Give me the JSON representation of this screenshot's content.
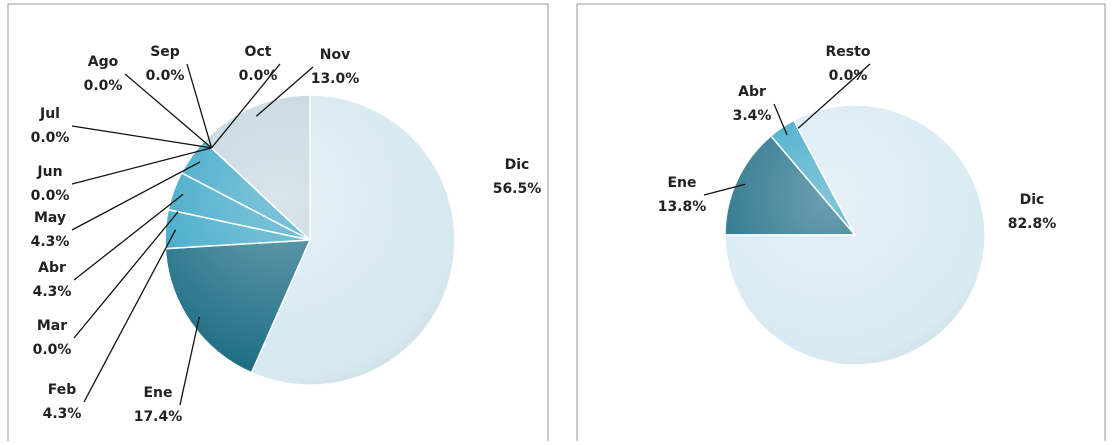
{
  "chart_data": [
    {
      "type": "pie",
      "categories": [
        "Dic",
        "Ene",
        "Feb",
        "Mar",
        "Abr",
        "May",
        "Jun",
        "Jul",
        "Ago",
        "Sep",
        "Oct",
        "Nov"
      ],
      "values": [
        56.5,
        17.4,
        4.3,
        0.0,
        4.3,
        4.3,
        0.0,
        0.0,
        0.0,
        0.0,
        0.0,
        13.0
      ],
      "value_labels": [
        "56.5%",
        "17.4%",
        "4.3%",
        "0.0%",
        "4.3%",
        "4.3%",
        "0.0%",
        "0.0%",
        "0.0%",
        "0.0%",
        "0.0%",
        "13.0%"
      ],
      "colors": [
        "#d6e8f1",
        "#1f6e86",
        "#3aa6c6",
        "#2f8fae",
        "#3aa6c6",
        "#3aa6c6",
        "#2f8fae",
        "#2f8fae",
        "#2f8fae",
        "#2f8fae",
        "#2f8fae",
        "#c3d6df"
      ]
    },
    {
      "type": "pie",
      "categories": [
        "Ene",
        "Abr",
        "Resto",
        "Dic"
      ],
      "values": [
        13.8,
        3.4,
        0.0,
        82.8
      ],
      "value_labels": [
        "13.8%",
        "3.4%",
        "0.0%",
        "82.8%"
      ],
      "colors": [
        "#1f6e86",
        "#3aa6c6",
        "#9aa6ab",
        "#d8eaf3"
      ]
    }
  ]
}
